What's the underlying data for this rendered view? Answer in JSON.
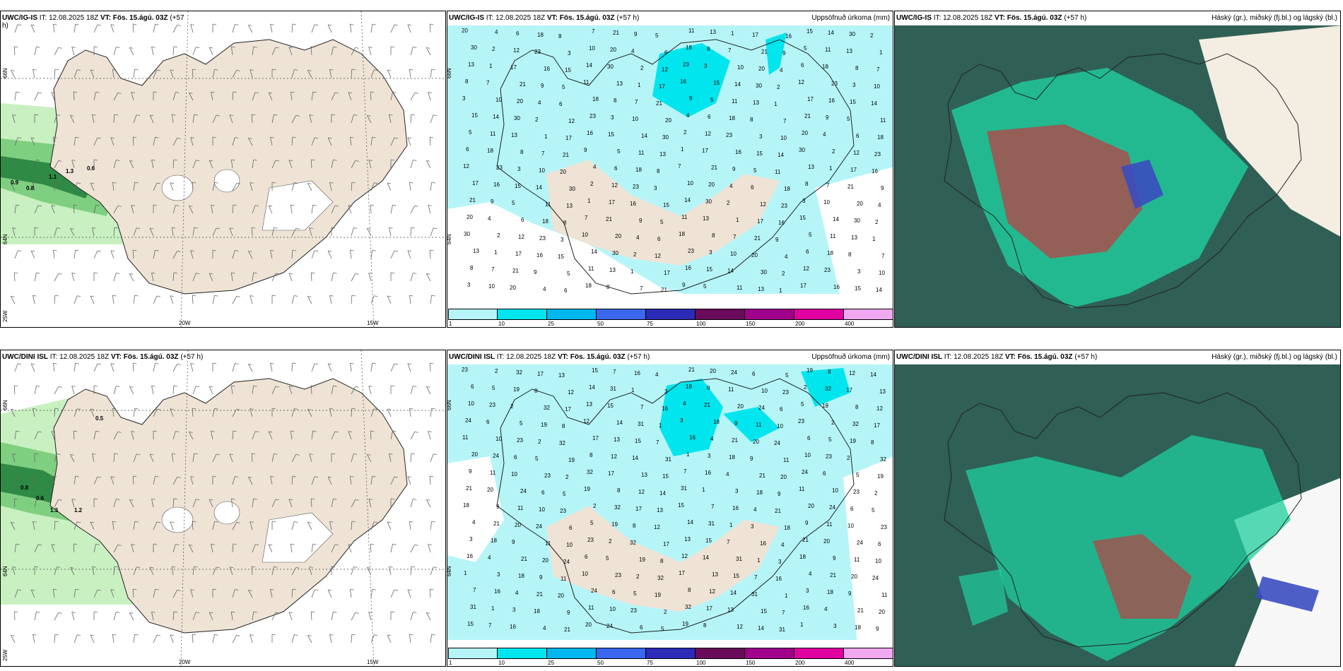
{
  "panels": {
    "r1c1": {
      "title_pre": "UWC/IG-IS",
      "title_it": " IT: 12.08.2025 18Z ",
      "title_vt": "VT: Fös. 15.ágú. 03Z",
      "title_post": " (+57",
      "title_wrap": "h)"
    },
    "r1c2": {
      "title_pre": "UWC/IG-IS",
      "title_it": " IT: 12.08.2025 18Z ",
      "title_vt": "VT: Fös. 15.ágú. 03Z",
      "title_post": " (+57 h)",
      "right": "Uppsöfnuð úrkoma (mm)"
    },
    "r1c3": {
      "title_pre": "UWC/IG-IS",
      "title_it": " IT: 12.08.2025 18Z ",
      "title_vt": "VT: Fös. 15.ágú. 03Z",
      "title_post": " (+57 h)",
      "right": "Háský (gr.), miðský (fj.bl.) og lágský (bl.)"
    },
    "r2c1": {
      "title_pre": "UWC/DINI ISL",
      "title_it": " IT: 12.08.2025 18Z ",
      "title_vt": "VT: Fös. 15.ágú. 03Z",
      "title_post": " (+57 h)"
    },
    "r2c2": {
      "title_pre": "UWC/DINI ISL",
      "title_it": " IT: 12.08.2025 18Z ",
      "title_vt": "VT: Fös. 15.ágú. 03Z",
      "title_post": " (+57 h)",
      "right": "Uppsöfnuð úrkoma (mm)"
    },
    "r2c3": {
      "title_pre": "UWC/DINI ISL",
      "title_it": " IT: 12.08.2025 18Z ",
      "title_vt": "VT: Fös. 15.ágú. 03Z",
      "title_post": " (+57 h)",
      "right": "Háský (gr.), miðský (fj.bl.) og lágský (bl.)"
    }
  },
  "axes": {
    "lat_66": "66N",
    "lat_64": "64N",
    "lon_25w": "25W",
    "lon_20w": "20W",
    "lon_15w": "15W"
  },
  "wind_panel_labels": {
    "top": [
      "0.6",
      "1.3",
      "1.1",
      "0.9",
      "0.8"
    ],
    "bottom": [
      "0.5",
      "0.8",
      "0.6",
      "1.3",
      "1.2"
    ]
  },
  "precip_colorbar": {
    "labels": [
      "1",
      "10",
      "25",
      "50",
      "75",
      "100",
      "150",
      "200",
      "400"
    ],
    "colors": [
      "#b5f5f8",
      "#00e5ee",
      "#00b8f0",
      "#3a66f0",
      "#2b2bb8",
      "#6a0a5a",
      "#a0008a",
      "#e000a0",
      "#f0a8f0"
    ]
  },
  "precip_numbers_top": [
    "5",
    "7",
    "6",
    "10",
    "12",
    "14",
    "17",
    "11",
    "21",
    "18",
    "20",
    "23",
    "30",
    "16",
    "13",
    "9",
    "8",
    "4",
    "3",
    "2",
    "15",
    "1"
  ],
  "precip_numbers_bottom": [
    "3",
    "5",
    "7",
    "10",
    "14",
    "20",
    "17",
    "18",
    "19",
    "16",
    "23",
    "31",
    "24",
    "13",
    "9",
    "8",
    "4",
    "2",
    "1",
    "6",
    "15",
    "11",
    "12",
    "21",
    "32"
  ],
  "colors": {
    "land": "#efe3d6",
    "sea": "#ffffff",
    "precip_light": "#b5f5f8",
    "wind_green_light": "#c8f0c0",
    "wind_green_mid": "#7fcf80",
    "wind_green_dark": "#2e8a45",
    "cloud_dark": "#2f5f55",
    "cloud_teal": "#1fcf9f",
    "cloud_red": "#b04848",
    "cloud_blue": "#3a4cc0"
  }
}
